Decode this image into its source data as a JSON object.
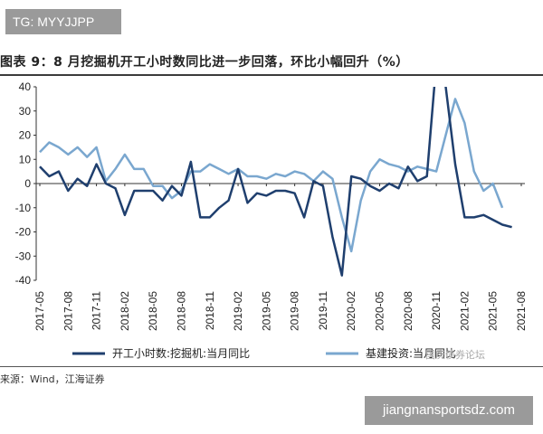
{
  "watermark_top": "TG: MYYJJPP",
  "watermark_bottom": "jiangnansportsdz.com",
  "watermark_overlay": "国庆债券论坛",
  "title": "图表 9：8 月挖掘机开工小时数同比进一步回落，环比小幅回升（%）",
  "source": "来源：Wind，江海证券",
  "colors": {
    "series1": "#1f3f6e",
    "series2": "#7aa7cf"
  },
  "chart_data": {
    "type": "line",
    "ylim": [
      -40,
      40
    ],
    "yticks": [
      40,
      30,
      20,
      10,
      0,
      -10,
      -20,
      -30,
      -40
    ],
    "xticks": [
      "2017-05",
      "2017-08",
      "2017-11",
      "2018-02",
      "2018-05",
      "2018-08",
      "2018-11",
      "2019-02",
      "2019-05",
      "2019-08",
      "2019-11",
      "2020-02",
      "2020-05",
      "2020-08",
      "2020-11",
      "2021-02",
      "2021-05",
      "2021-08"
    ],
    "x": [
      "2017-05",
      "2017-06",
      "2017-07",
      "2017-08",
      "2017-09",
      "2017-10",
      "2017-11",
      "2017-12",
      "2018-01",
      "2018-02",
      "2018-03",
      "2018-04",
      "2018-05",
      "2018-06",
      "2018-07",
      "2018-08",
      "2018-09",
      "2018-10",
      "2018-11",
      "2018-12",
      "2019-01",
      "2019-02",
      "2019-03",
      "2019-04",
      "2019-05",
      "2019-06",
      "2019-07",
      "2019-08",
      "2019-09",
      "2019-10",
      "2019-11",
      "2019-12",
      "2020-01",
      "2020-02",
      "2020-03",
      "2020-04",
      "2020-05",
      "2020-06",
      "2020-07",
      "2020-08",
      "2020-09",
      "2020-10",
      "2020-11",
      "2020-12",
      "2021-01",
      "2021-02",
      "2021-03",
      "2021-04",
      "2021-05",
      "2021-06",
      "2021-07",
      "2021-08"
    ],
    "series": [
      {
        "name": "开工小时数:挖掘机:当月同比",
        "values": [
          7,
          3,
          5,
          -3,
          2,
          -1,
          8,
          0,
          -2,
          -13,
          -3,
          -3,
          -3,
          -7,
          -1,
          -5,
          9,
          -14,
          -14,
          -10,
          -7,
          6,
          -8,
          -4,
          -5,
          -3,
          -3,
          -4,
          -14,
          1,
          -1,
          -22,
          -38,
          3,
          2,
          -1,
          -3,
          0,
          -2,
          7,
          1,
          3,
          50,
          40,
          8,
          -14,
          -14,
          -13,
          -15,
          -17,
          -18,
          null
        ],
        "note": "values at 2020-12/2021-01 clipped above y=40"
      },
      {
        "name": "基建投资:当月同比",
        "values": [
          13,
          17,
          15,
          12,
          15,
          11,
          15,
          1,
          6,
          12,
          6,
          6,
          -1,
          -1,
          -6,
          -3,
          5,
          5,
          8,
          6,
          4,
          6,
          3,
          3,
          2,
          4,
          3,
          5,
          4,
          1,
          5,
          2,
          -14,
          -28,
          -7,
          5,
          10,
          8,
          7,
          5,
          7,
          6,
          5,
          20,
          35,
          25,
          5,
          -3,
          0,
          -10,
          null,
          null
        ]
      }
    ],
    "legend_position": "bottom",
    "grid": false
  }
}
